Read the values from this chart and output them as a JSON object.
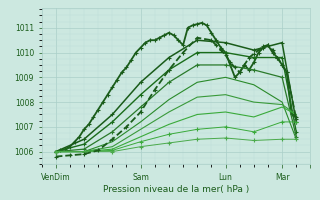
{
  "xlabel": "Pression niveau de la mer( hPa )",
  "background_color": "#cce8e0",
  "plot_bg_color": "#cce8e0",
  "grid_color_major": "#aacfc8",
  "grid_color_minor": "#bbddd8",
  "ylim": [
    1005.5,
    1011.8
  ],
  "xlim": [
    0,
    114
  ],
  "yticks": [
    1006,
    1007,
    1008,
    1009,
    1010,
    1011
  ],
  "xtick_positions": [
    6,
    42,
    78,
    102,
    114
  ],
  "xtick_labels": [
    "VenDim",
    "Sam",
    "Lun",
    "Mar",
    ""
  ],
  "dark_green": "#1a5c1a",
  "mid_green": "#2a7a2a",
  "light_green": "#4aaa4a",
  "series": [
    {
      "x": [
        6,
        8,
        10,
        12,
        14,
        16,
        18,
        20,
        22,
        24,
        26,
        28,
        30,
        32,
        34,
        36,
        38,
        40,
        42,
        44,
        46,
        48,
        50,
        52,
        54,
        56,
        58,
        60,
        62,
        64,
        66,
        68,
        70,
        72,
        74,
        76,
        78,
        80,
        82,
        84,
        86,
        88,
        90,
        92,
        94,
        96,
        98,
        100,
        102,
        104,
        106,
        108
      ],
      "y": [
        1006.0,
        1006.05,
        1006.1,
        1006.2,
        1006.4,
        1006.6,
        1006.9,
        1007.1,
        1007.4,
        1007.7,
        1008.0,
        1008.3,
        1008.6,
        1008.9,
        1009.2,
        1009.4,
        1009.7,
        1010.0,
        1010.2,
        1010.4,
        1010.5,
        1010.5,
        1010.6,
        1010.7,
        1010.8,
        1010.7,
        1010.5,
        1010.3,
        1011.0,
        1011.1,
        1011.15,
        1011.2,
        1011.1,
        1010.8,
        1010.5,
        1010.2,
        1010.0,
        1009.5,
        1009.0,
        1009.2,
        1009.5,
        1009.3,
        1009.6,
        1010.0,
        1010.2,
        1010.3,
        1010.0,
        1009.8,
        1009.5,
        1009.2,
        1007.5,
        1007.4
      ],
      "style": "-",
      "marker": "+",
      "color": "#1a5c1a",
      "lw": 1.3,
      "ms": 3.5
    },
    {
      "x": [
        6,
        18,
        30,
        42,
        54,
        66,
        78,
        90,
        102,
        108
      ],
      "y": [
        1006.0,
        1006.5,
        1007.5,
        1008.8,
        1009.8,
        1010.5,
        1010.4,
        1010.1,
        1010.4,
        1007.2
      ],
      "style": "-",
      "marker": "+",
      "color": "#1a5c1a",
      "lw": 1.1,
      "ms": 3.0
    },
    {
      "x": [
        6,
        18,
        30,
        42,
        54,
        66,
        78,
        90,
        102,
        108
      ],
      "y": [
        1006.0,
        1006.3,
        1007.2,
        1008.3,
        1009.3,
        1010.0,
        1010.0,
        1009.8,
        1009.8,
        1006.8
      ],
      "style": "-",
      "marker": "+",
      "color": "#1a6c1a",
      "lw": 1.0,
      "ms": 3.0
    },
    {
      "x": [
        6,
        18,
        30,
        42,
        54,
        66,
        78,
        90,
        102,
        108
      ],
      "y": [
        1006.0,
        1006.1,
        1006.8,
        1007.8,
        1008.8,
        1009.5,
        1009.5,
        1009.3,
        1009.0,
        1006.6
      ],
      "style": "-",
      "marker": "+",
      "color": "#2a7a2a",
      "lw": 0.9,
      "ms": 2.5
    },
    {
      "x": [
        6,
        18,
        30,
        42,
        54,
        66,
        78,
        90,
        102,
        108
      ],
      "y": [
        1006.0,
        1006.0,
        1006.4,
        1007.2,
        1008.1,
        1008.8,
        1009.0,
        1008.7,
        1008.0,
        1006.5
      ],
      "style": "-",
      "marker": "None",
      "color": "#2a8a2a",
      "lw": 0.8,
      "ms": 0
    },
    {
      "x": [
        6,
        18,
        30,
        42,
        54,
        66,
        78,
        90,
        102,
        108
      ],
      "y": [
        1006.0,
        1006.0,
        1006.2,
        1006.9,
        1007.6,
        1008.2,
        1008.3,
        1008.0,
        1007.9,
        1007.5
      ],
      "style": "-",
      "marker": "None",
      "color": "#3a9a3a",
      "lw": 0.8,
      "ms": 0
    },
    {
      "x": [
        6,
        18,
        30,
        42,
        54,
        66,
        78,
        90,
        102,
        108
      ],
      "y": [
        1006.0,
        1006.0,
        1006.1,
        1006.6,
        1007.1,
        1007.5,
        1007.6,
        1007.4,
        1007.8,
        1007.5
      ],
      "style": "-",
      "marker": "None",
      "color": "#3aaa3a",
      "lw": 0.8,
      "ms": 0
    },
    {
      "x": [
        6,
        18,
        30,
        42,
        54,
        66,
        78,
        90,
        102,
        108
      ],
      "y": [
        1006.0,
        1006.0,
        1006.05,
        1006.4,
        1006.7,
        1006.9,
        1007.0,
        1006.8,
        1007.2,
        1007.2
      ],
      "style": "-",
      "marker": "+",
      "color": "#3aaa3a",
      "lw": 0.7,
      "ms": 2.5
    },
    {
      "x": [
        6,
        18,
        30,
        42,
        54,
        66,
        78,
        90,
        102,
        108
      ],
      "y": [
        1006.0,
        1006.0,
        1006.0,
        1006.2,
        1006.35,
        1006.5,
        1006.55,
        1006.45,
        1006.5,
        1006.5
      ],
      "style": "-",
      "marker": "+",
      "color": "#4aaa4a",
      "lw": 0.7,
      "ms": 2.5
    },
    {
      "x": [
        6,
        12,
        18,
        24,
        30,
        36,
        42,
        48,
        54,
        60,
        66,
        72,
        74,
        76,
        78,
        80,
        82,
        84,
        86,
        88,
        90,
        92,
        94,
        96,
        98,
        100,
        102,
        104,
        108
      ],
      "y": [
        1005.8,
        1005.85,
        1005.9,
        1006.05,
        1006.5,
        1007.0,
        1007.6,
        1008.5,
        1009.3,
        1010.0,
        1010.6,
        1010.5,
        1010.3,
        1010.1,
        1009.9,
        1009.6,
        1009.4,
        1009.2,
        1009.5,
        1009.8,
        1009.95,
        1010.1,
        1010.25,
        1010.3,
        1010.1,
        1009.8,
        1009.5,
        1009.2,
        1007.3
      ],
      "style": "--",
      "marker": "+",
      "color": "#1a5c1a",
      "lw": 1.3,
      "ms": 3.5
    }
  ]
}
